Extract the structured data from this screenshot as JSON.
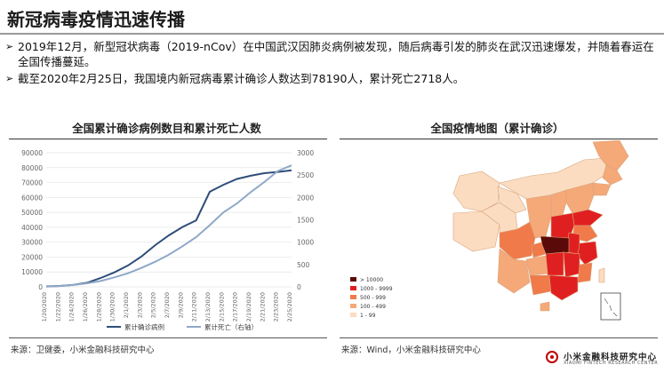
{
  "page": {
    "title": "新冠病毒疫情迅速传播",
    "bullets": [
      "2019年12月，新型冠状病毒（2019-nCov）在中国武汉因肺炎病例被发现，随后病毒引发的肺炎在武汉迅速爆发，并随着春运在全国传播蔓延。",
      "截至2020年2月25日，我国境内新冠病毒累计确诊人数达到78190人，累计死亡2718人。"
    ],
    "bullet_marker": "➢"
  },
  "left_panel": {
    "title": "全国累计确诊病例数目和累计死亡人数",
    "source": "来源：卫健委，小米金融科技研究中心"
  },
  "right_panel": {
    "title": "全国疫情地图（累计确诊）",
    "source": "来源：Wind，小米金融科技研究中心",
    "legend": [
      {
        "label": "> 10000",
        "color": "#5b0a0a"
      },
      {
        "label": "1000 - 9999",
        "color": "#e02020"
      },
      {
        "label": "500 - 999",
        "color": "#f07a4a"
      },
      {
        "label": "100 - 499",
        "color": "#f5a878"
      },
      {
        "label": "1 - 99",
        "color": "#fbdcc0"
      }
    ]
  },
  "brand": {
    "name": "小米金融科技研究中心",
    "name_en": "XIAOMI FINTECH RESEARCH CENTER"
  },
  "chart_data": {
    "type": "line",
    "title": "全国累计确诊病例数目和累计死亡人数",
    "x": [
      "1/20/2020",
      "1/22/2020",
      "1/24/2020",
      "1/26/2020",
      "1/28/2020",
      "1/30/2020",
      "2/1/2020",
      "2/3/2020",
      "2/5/2020",
      "2/7/2020",
      "2/9/2020",
      "2/11/2020",
      "2/13/2020",
      "2/15/2020",
      "2/17/2020",
      "2/19/2020",
      "2/21/2020",
      "2/23/2020",
      "2/25/2020"
    ],
    "y_left": {
      "min": 0,
      "max": 90000,
      "ticks": [
        "0",
        "10000",
        "20000",
        "30000",
        "40000",
        "50000",
        "60000",
        "70000",
        "80000",
        "90000"
      ]
    },
    "y_right": {
      "min": 0,
      "max": 3000,
      "ticks": [
        "0",
        "500",
        "1000",
        "1500",
        "2000",
        "2500",
        "3000"
      ]
    },
    "series": [
      {
        "name": "累计确诊病例",
        "axis": "left",
        "color": "#2f4e79",
        "values": [
          291,
          571,
          1287,
          2744,
          5974,
          9692,
          14380,
          20438,
          28018,
          34546,
          40171,
          44653,
          63851,
          68500,
          72436,
          74576,
          76288,
          77150,
          78190
        ]
      },
      {
        "name": "累计死亡（右轴）",
        "axis": "right",
        "color": "#8fa8c8",
        "values": [
          6,
          17,
          41,
          80,
          132,
          213,
          304,
          425,
          563,
          722,
          908,
          1113,
          1380,
          1665,
          1868,
          2118,
          2345,
          2592,
          2718
        ]
      }
    ],
    "grid": "horizontal",
    "legend_position": "bottom"
  }
}
